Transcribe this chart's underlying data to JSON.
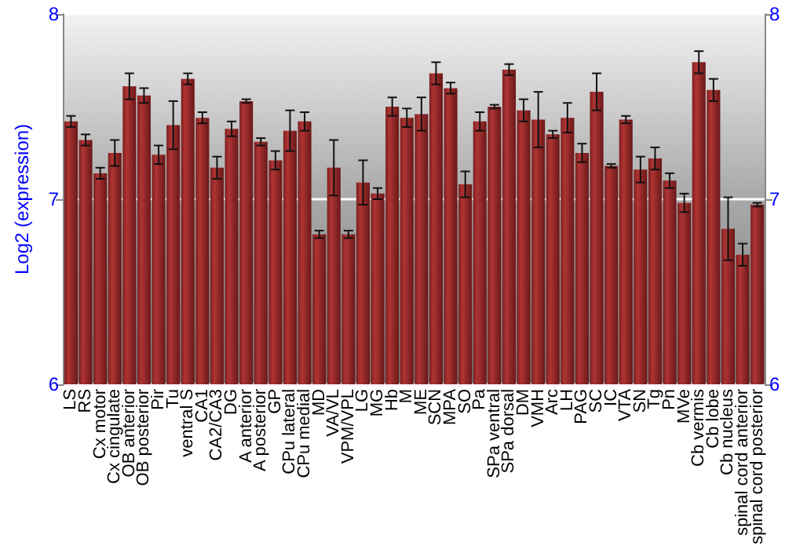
{
  "chart_data": {
    "type": "bar",
    "ylabel": "Log2 (expression)",
    "categories": [
      "LS",
      "RS",
      "Cx motor",
      "Cx cingulate",
      "OB anterior",
      "OB posterior",
      "Pir",
      "Tu",
      "ventral S",
      "CA1",
      "CA2/CA3",
      "DG",
      "A anterior",
      "A posterior",
      "GP",
      "CPu lateral",
      "CPu medial",
      "MD",
      "VA/VL",
      "VPM/VPL",
      "LG",
      "MG",
      "Hb",
      "M",
      "ME",
      "SCN",
      "MPA",
      "SO",
      "Pa",
      "SPa ventral",
      "SPa dorsal",
      "DM",
      "VMH",
      "Arc",
      "LH",
      "PAG",
      "SC",
      "IC",
      "VTA",
      "SN",
      "Tg",
      "Pn",
      "MVe",
      "Cb vermis",
      "Cb lobe",
      "Cb nucleus",
      "spinal cord anterior",
      "spinal cord posterior"
    ],
    "values": [
      7.42,
      7.32,
      7.14,
      7.25,
      7.61,
      7.56,
      7.24,
      7.4,
      7.65,
      7.44,
      7.17,
      7.38,
      7.53,
      7.31,
      7.21,
      7.37,
      7.42,
      6.81,
      7.17,
      6.81,
      7.09,
      7.03,
      7.5,
      7.44,
      7.46,
      7.68,
      7.6,
      7.08,
      7.42,
      7.5,
      7.7,
      7.48,
      7.43,
      7.35,
      7.44,
      7.25,
      7.58,
      7.18,
      7.43,
      7.16,
      7.22,
      7.1,
      6.98,
      7.74,
      7.59,
      6.84,
      6.7,
      6.97
    ],
    "errors": [
      0.03,
      0.03,
      0.03,
      0.07,
      0.07,
      0.04,
      0.05,
      0.13,
      0.03,
      0.03,
      0.06,
      0.04,
      0.01,
      0.02,
      0.05,
      0.11,
      0.05,
      0.02,
      0.15,
      0.02,
      0.12,
      0.03,
      0.05,
      0.05,
      0.09,
      0.06,
      0.03,
      0.07,
      0.05,
      0.01,
      0.03,
      0.06,
      0.15,
      0.02,
      0.08,
      0.05,
      0.1,
      0.01,
      0.02,
      0.07,
      0.06,
      0.04,
      0.05,
      0.06,
      0.06,
      0.17,
      0.06,
      0.01
    ],
    "color": "#b03434",
    "ylim": [
      6,
      8
    ],
    "yticks": [
      6,
      7,
      8
    ],
    "y2lim": [
      6,
      8
    ],
    "y2ticks": [
      6,
      7,
      8
    ],
    "grid": "y"
  }
}
